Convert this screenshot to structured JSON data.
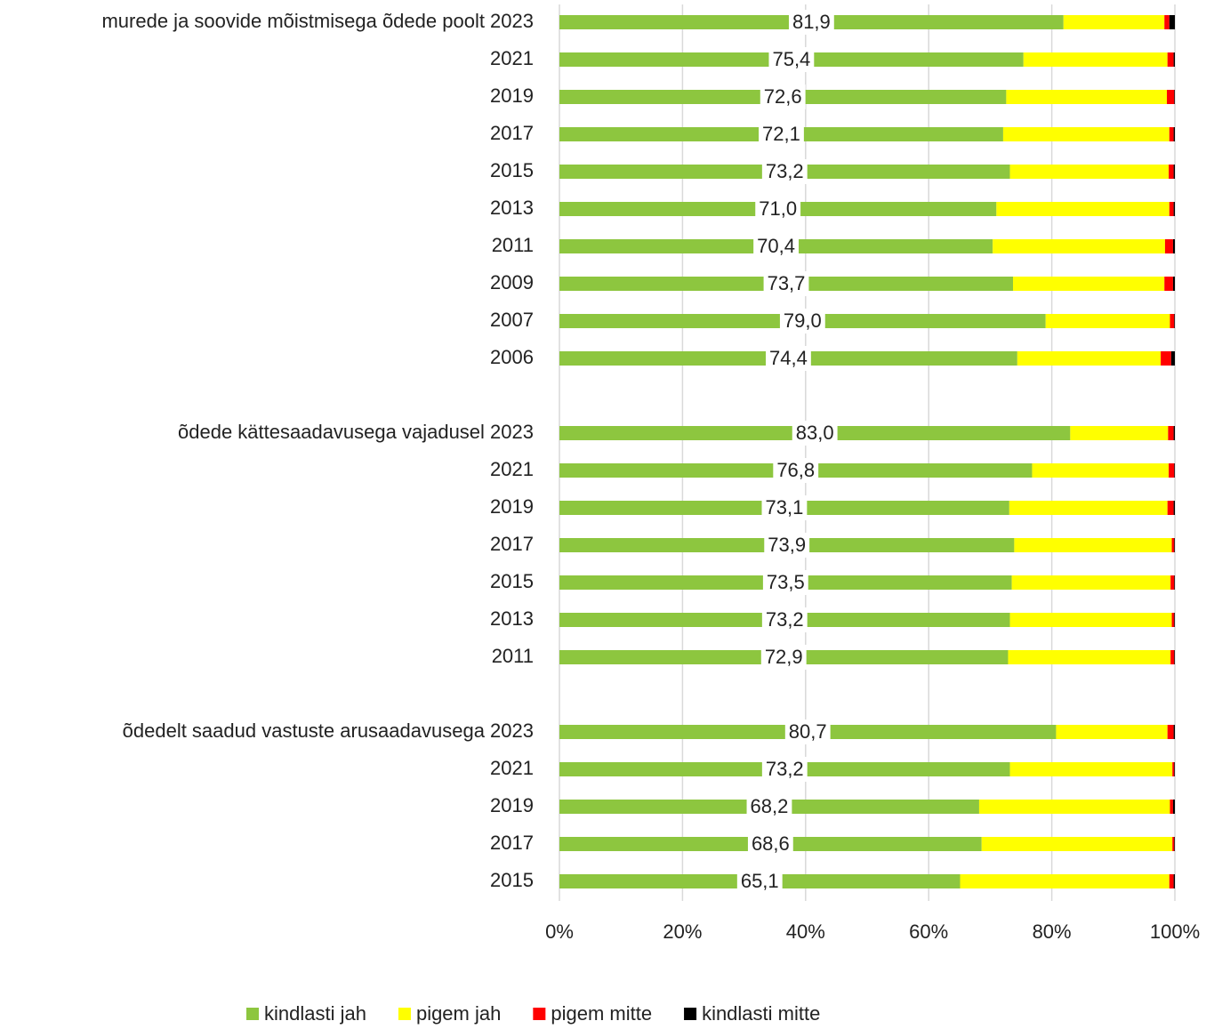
{
  "chart_data": {
    "type": "stacked_barh",
    "categories": [
      "murede ja soovide mõistmisega õdede poolt 2023",
      "2021",
      "2019",
      "2017",
      "2015",
      "2013",
      "2011",
      "2009",
      "2007",
      "2006",
      null,
      "õdede kättesaadavusega vajadusel 2023",
      "2021",
      "2019",
      "2017",
      "2015",
      "2013",
      "2011",
      null,
      "õdedelt saadud vastuste arusaadavusega 2023",
      "2021",
      "2019",
      "2017",
      "2015"
    ],
    "series": [
      {
        "name": "kindlasti jah",
        "color": "#8dc63f",
        "values": [
          81.9,
          75.4,
          72.6,
          72.1,
          73.2,
          71.0,
          70.4,
          73.7,
          79.0,
          74.4,
          null,
          83.0,
          76.8,
          73.1,
          73.9,
          73.5,
          73.2,
          72.9,
          null,
          80.7,
          73.2,
          68.2,
          68.6,
          65.1
        ],
        "value_labels": [
          "81,9",
          "75,4",
          "72,6",
          "72,1",
          "73,2",
          "71,0",
          "70,4",
          "73,7",
          "79,0",
          "74,4",
          null,
          "83,0",
          "76,8",
          "73,1",
          "73,9",
          "73,5",
          "73,2",
          "72,9",
          null,
          "80,7",
          "73,2",
          "68,2",
          "68,6",
          "65,1"
        ]
      },
      {
        "name": "pigem jah",
        "color": "#ffff00",
        "values": [
          16.4,
          23.4,
          26.1,
          27.0,
          25.8,
          28.1,
          28.0,
          24.6,
          20.2,
          23.3,
          null,
          15.9,
          22.2,
          25.7,
          25.6,
          25.8,
          26.3,
          26.4,
          null,
          18.1,
          26.4,
          31.0,
          31.0,
          34.0
        ]
      },
      {
        "name": "pigem mitte",
        "color": "#ff0000",
        "values": [
          0.8,
          1.0,
          1.2,
          0.7,
          0.8,
          0.7,
          1.3,
          1.4,
          0.7,
          1.7,
          null,
          0.9,
          0.9,
          1.0,
          0.4,
          0.6,
          0.4,
          0.6,
          null,
          1.0,
          0.3,
          0.5,
          0.3,
          0.7
        ]
      },
      {
        "name": "kindlasti mitte",
        "color": "#000000",
        "values": [
          0.9,
          0.2,
          0.1,
          0.2,
          0.2,
          0.2,
          0.3,
          0.3,
          0.1,
          0.6,
          null,
          0.2,
          0.1,
          0.2,
          0.1,
          0.1,
          0.1,
          0.1,
          null,
          0.2,
          0.1,
          0.3,
          0.1,
          0.2
        ]
      }
    ],
    "xlim": [
      0,
      100
    ],
    "xticks": [
      {
        "value": 0,
        "label": "0%"
      },
      {
        "value": 20,
        "label": "20%"
      },
      {
        "value": 40,
        "label": "40%"
      },
      {
        "value": 60,
        "label": "60%"
      },
      {
        "value": 80,
        "label": "80%"
      },
      {
        "value": 100,
        "label": "100%"
      }
    ],
    "grid": true,
    "legend": "bottom"
  }
}
